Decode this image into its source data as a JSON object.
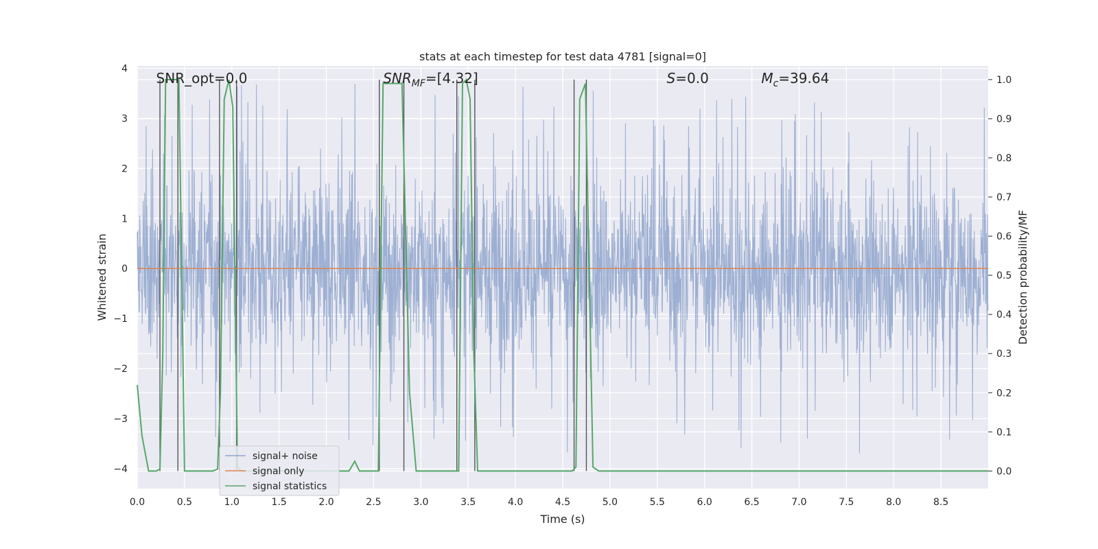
{
  "chart_data": {
    "type": "line",
    "title": "stats at each timestep for test data 4781 [signal=0]",
    "xlabel": "Time (s)",
    "ylabel": "Whitened strain",
    "y2label": "Detection probability/MF",
    "xlim": [
      0,
      9.0
    ],
    "ylim": [
      -4.4,
      4.05
    ],
    "y2lim": [
      -0.045,
      1.035
    ],
    "xticks": [
      0.0,
      0.5,
      1.0,
      1.5,
      2.0,
      2.5,
      3.0,
      3.5,
      4.0,
      4.5,
      5.0,
      5.5,
      6.0,
      6.5,
      7.0,
      7.5,
      8.0,
      8.5
    ],
    "xtick_labels": [
      "0.0",
      "0.5",
      "1.0",
      "1.5",
      "2.0",
      "2.5",
      "3.0",
      "3.5",
      "4.0",
      "4.5",
      "5.0",
      "5.5",
      "6.0",
      "6.5",
      "7.0",
      "7.5",
      "8.0",
      "8.5"
    ],
    "yticks": [
      4,
      3,
      2,
      1,
      0,
      -1,
      -2,
      -3,
      -4
    ],
    "ytick_labels": [
      "4",
      "3",
      "2",
      "1",
      "0",
      "−1",
      "−2",
      "−3",
      "−4"
    ],
    "y2ticks": [
      1.0,
      0.9,
      0.8,
      0.7,
      0.6,
      0.5,
      0.4,
      0.3,
      0.2,
      0.1,
      0.0
    ],
    "y2tick_labels": [
      "1.0",
      "0.9",
      "0.8",
      "0.7",
      "0.6",
      "0.5",
      "0.4",
      "0.3",
      "0.2",
      "0.1",
      "0.0"
    ],
    "grid": true,
    "legend_position": "lower-left",
    "legend": [
      "signal+ noise",
      "signal only",
      "signal statistics"
    ],
    "series": [
      {
        "name": "signal+ noise",
        "color": "#8fa4cc",
        "description_axis": "left",
        "noise_envelope": {
          "typical_abs": 1.6,
          "max_abs": 3.7
        }
      },
      {
        "name": "signal only",
        "color": "#dd8452",
        "axis": "left",
        "x": [
          0.0,
          9.0
        ],
        "y": [
          0.0,
          0.0
        ]
      },
      {
        "name": "signal statistics",
        "color": "#55a868",
        "axis": "right",
        "x": [
          0.0,
          0.05,
          0.12,
          0.2,
          0.24,
          0.27,
          0.3,
          0.4,
          0.44,
          0.48,
          0.5,
          0.8,
          0.85,
          0.88,
          0.92,
          0.97,
          1.01,
          1.06,
          1.1,
          1.2,
          1.5,
          2.0,
          2.24,
          2.3,
          2.35,
          2.55,
          2.6,
          2.65,
          2.8,
          2.88,
          2.95,
          3.4,
          3.44,
          3.48,
          3.52,
          3.56,
          3.6,
          3.65,
          4.0,
          4.2,
          4.4,
          4.6,
          4.64,
          4.68,
          4.74,
          4.78,
          4.82,
          4.88,
          4.93,
          5.1,
          6.0,
          7.0,
          8.0,
          9.0
        ],
        "y": [
          0.22,
          0.09,
          0.0,
          0.0,
          0.005,
          0.3,
          1.0,
          1.0,
          1.0,
          0.35,
          0.0,
          0.0,
          0.005,
          0.2,
          0.95,
          1.0,
          0.93,
          0.01,
          0.0,
          0.0,
          0.0,
          0.0,
          0.0,
          0.025,
          0.0,
          0.0,
          0.99,
          0.99,
          0.99,
          0.2,
          0.0,
          0.0,
          0.99,
          1.0,
          0.95,
          0.3,
          0.0,
          0.0,
          0.0,
          0.0,
          0.0,
          0.0,
          0.01,
          0.95,
          0.99,
          0.5,
          0.01,
          0.0,
          0.0,
          0.0,
          0.0,
          0.0,
          0.0,
          0.0
        ]
      }
    ],
    "vertical_markers": [
      0.24,
      0.43,
      0.87,
      1.05,
      2.56,
      2.82,
      3.38,
      3.57,
      4.62,
      4.75
    ],
    "annotations": [
      {
        "text": "SNR_opt=0.0",
        "x": 0.2,
        "y": 3.8
      },
      {
        "text": "SNR",
        "sub": "MF",
        "tail": "=[4.32]",
        "italic": true,
        "x": 2.6,
        "y": 3.8
      },
      {
        "text": "S",
        "tail": "=0.0",
        "italic": true,
        "x": 5.6,
        "y": 3.8
      },
      {
        "text": "M",
        "sub": "c",
        "tail": "=39.64",
        "italic": true,
        "x": 6.6,
        "y": 3.8
      }
    ]
  }
}
